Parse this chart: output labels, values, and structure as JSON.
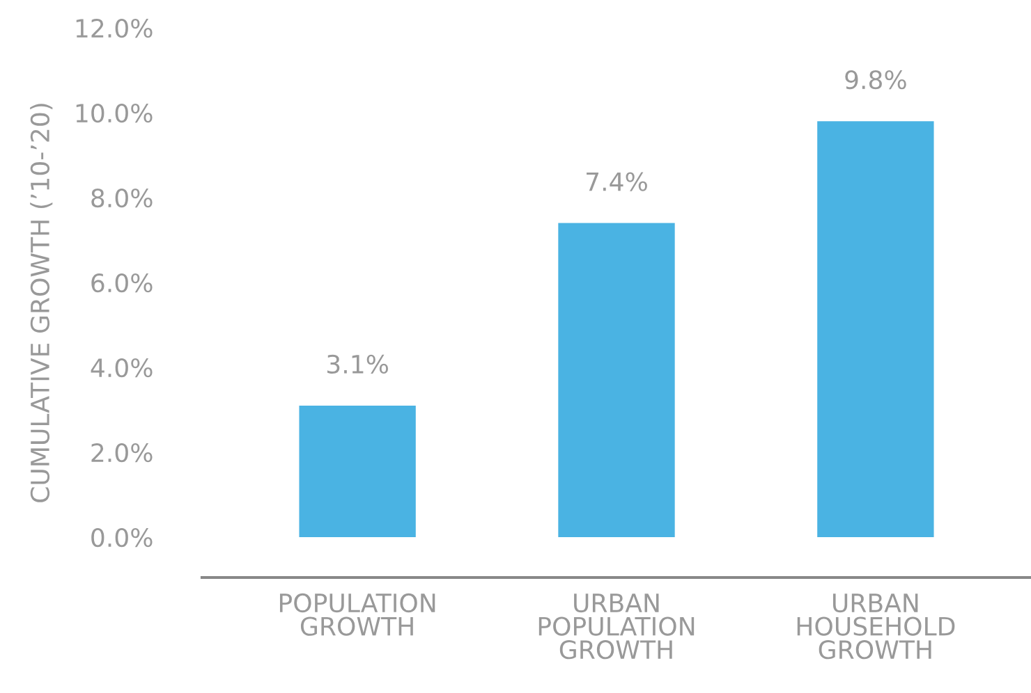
{
  "chart_data": {
    "type": "bar",
    "ylabel": "CUMULATIVE GROWTH (’10-’20)",
    "categories": [
      "POPULATION\nGROWTH",
      "URBAN\nPOPULATION\nGROWTH",
      "URBAN\nHOUSEHOLD\nGROWTH"
    ],
    "values": [
      3.1,
      7.4,
      9.8
    ],
    "color": "#4ab3e3",
    "data_labels": true,
    "value_labels": [
      "3.1%",
      "7.4%",
      "9.8%"
    ],
    "ylim": [
      -0.95,
      12
    ],
    "yticks": [
      {
        "value": 0,
        "label": "0.0%"
      },
      {
        "value": 2,
        "label": "2.0%"
      },
      {
        "value": 4,
        "label": "4.0%"
      },
      {
        "value": 6,
        "label": "6.0%"
      },
      {
        "value": 8,
        "label": "8.0%"
      },
      {
        "value": 10,
        "label": "10.0%"
      },
      {
        "value": 12,
        "label": "12.0%"
      }
    ],
    "grid": false,
    "legend": false
  }
}
